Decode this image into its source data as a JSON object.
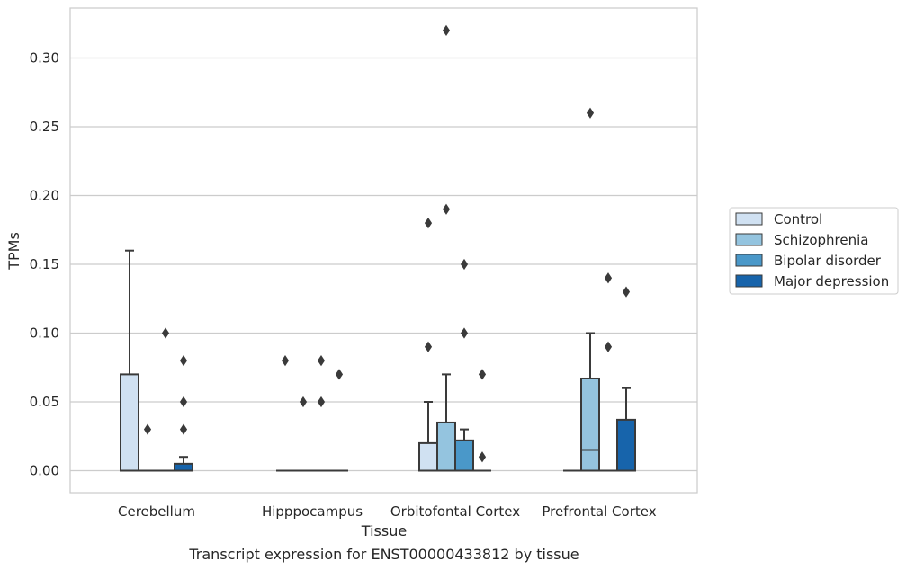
{
  "chart_data": {
    "type": "box",
    "caption": "Transcript expression for ENST00000433812 by tissue",
    "xlabel": "Tissue",
    "ylabel": "TPMs",
    "ylim": [
      -0.016,
      0.337
    ],
    "yticks": [
      "0.00",
      "0.05",
      "0.10",
      "0.15",
      "0.20",
      "0.25",
      "0.30"
    ],
    "ytick_values": [
      0,
      0.05,
      0.1,
      0.15,
      0.2,
      0.25,
      0.3
    ],
    "grid": "horizontal",
    "legend_placement": "right",
    "categories": [
      "Cerebellum",
      "Hipppocampus",
      "Orbitofontal Cortex",
      "Prefrontal Cortex"
    ],
    "series": [
      {
        "name": "Control",
        "color": "#d0e1f2",
        "boxes": [
          {
            "q1": 0,
            "median": 0,
            "q3": 0.07,
            "whislo": 0,
            "whishi": 0.16,
            "fliers": []
          },
          {
            "q1": 0,
            "median": 0,
            "q3": 0,
            "whislo": 0,
            "whishi": 0,
            "fliers": [
              0.08
            ]
          },
          {
            "q1": 0,
            "median": 0,
            "q3": 0.02,
            "whislo": 0,
            "whishi": 0.05,
            "fliers": [
              0.09,
              0.18
            ]
          },
          {
            "q1": 0,
            "median": 0,
            "q3": 0,
            "whislo": 0,
            "whishi": 0,
            "fliers": []
          }
        ]
      },
      {
        "name": "Schizophrenia",
        "color": "#94c4df",
        "boxes": [
          {
            "q1": 0,
            "median": 0,
            "q3": 0,
            "whislo": 0,
            "whishi": 0,
            "fliers": [
              0.03
            ]
          },
          {
            "q1": 0,
            "median": 0,
            "q3": 0,
            "whislo": 0,
            "whishi": 0,
            "fliers": [
              0.05
            ]
          },
          {
            "q1": 0,
            "median": 0,
            "q3": 0.035,
            "whislo": 0,
            "whishi": 0.07,
            "fliers": [
              0.19,
              0.32
            ]
          },
          {
            "q1": 0,
            "median": 0.015,
            "q3": 0.067,
            "whislo": 0,
            "whishi": 0.1,
            "fliers": [
              0.26
            ]
          }
        ]
      },
      {
        "name": "Bipolar disorder",
        "color": "#4a98c9",
        "boxes": [
          {
            "q1": 0,
            "median": 0,
            "q3": 0,
            "whislo": 0,
            "whishi": 0,
            "fliers": [
              0.1
            ]
          },
          {
            "q1": 0,
            "median": 0,
            "q3": 0,
            "whislo": 0,
            "whishi": 0,
            "fliers": [
              0.05,
              0.08
            ]
          },
          {
            "q1": 0,
            "median": 0,
            "q3": 0.022,
            "whislo": 0,
            "whishi": 0.03,
            "fliers": [
              0.1,
              0.15
            ]
          },
          {
            "q1": 0,
            "median": 0,
            "q3": 0,
            "whislo": 0,
            "whishi": 0,
            "fliers": [
              0.09,
              0.14
            ]
          }
        ]
      },
      {
        "name": "Major depression",
        "color": "#1764ab",
        "boxes": [
          {
            "q1": 0,
            "median": 0,
            "q3": 0.005,
            "whislo": 0,
            "whishi": 0.01,
            "fliers": [
              0.03,
              0.05,
              0.08
            ]
          },
          {
            "q1": 0,
            "median": 0,
            "q3": 0,
            "whislo": 0,
            "whishi": 0,
            "fliers": [
              0.07
            ]
          },
          {
            "q1": 0,
            "median": 0,
            "q3": 0,
            "whislo": 0,
            "whishi": 0,
            "fliers": [
              0.01,
              0.07
            ]
          },
          {
            "q1": 0,
            "median": 0,
            "q3": 0.037,
            "whislo": 0,
            "whishi": 0.06,
            "fliers": [
              0.13
            ]
          }
        ]
      }
    ]
  }
}
